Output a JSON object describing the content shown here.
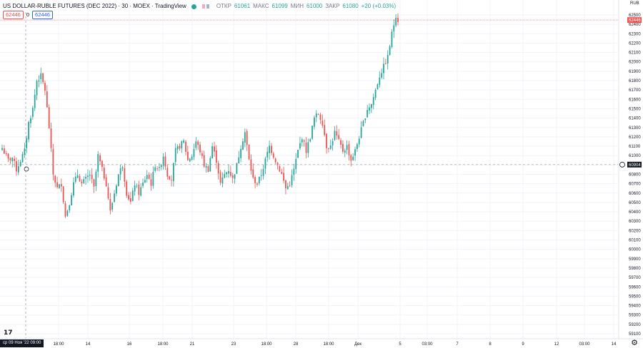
{
  "header": {
    "title": "US DOLLAR-RUBLE FUTURES (DEC 2022) · 30 · MOEX · TradingView",
    "open_label": "ОТКР",
    "open_value": "61061",
    "high_label": "МАКС",
    "high_value": "61099",
    "low_label": "МИН",
    "low_value": "61000",
    "close_label": "ЗАКР",
    "close_value": "61080",
    "change": "+20 (+0.03%)",
    "sell_price": "62446",
    "spread": "0",
    "buy_price": "62446"
  },
  "price_axis": {
    "currency": "RUB",
    "ticks": [
      62500,
      62400,
      62300,
      62200,
      62100,
      62000,
      61900,
      61800,
      61700,
      61600,
      61500,
      61400,
      61300,
      61200,
      61100,
      61000,
      60900,
      60800,
      60700,
      60600,
      60500,
      60400,
      60300,
      60200,
      60100,
      60000,
      59900,
      59800,
      59700,
      59600,
      59500,
      59400,
      59300,
      59200,
      59100
    ],
    "last_price_label": "62446",
    "crosshair_label": "60904"
  },
  "time_axis": {
    "crosshair_label": "ср 09 Ноя '22  09:00",
    "ticks": [
      "18:00",
      "14",
      "16",
      "18:00",
      "21",
      "23",
      "18:00",
      "28",
      "18:00",
      "Дек",
      "5",
      "03:00",
      "7",
      "8",
      "9",
      "12",
      "03:00",
      "14"
    ]
  },
  "colors": {
    "up": "#26a69a",
    "down": "#ef5350",
    "crosshair": "#9598a1",
    "last_price": "#ef5350"
  },
  "chart_data": {
    "type": "candlestick",
    "title": "US DOLLAR-RUBLE FUTURES (DEC 2022)",
    "interval": "30",
    "exchange": "MOEX",
    "ylim": [
      59050,
      62580
    ],
    "last_price": 62446,
    "crosshair_price": 60904,
    "crosshair_time": "ср 09 Ноя '22  09:00",
    "close_path": [
      {
        "i": 0,
        "close": 61080
      },
      {
        "i": 3,
        "close": 60950
      },
      {
        "i": 5,
        "close": 60980
      },
      {
        "i": 7,
        "close": 60850
      },
      {
        "i": 9,
        "close": 60950
      },
      {
        "i": 11,
        "close": 61050
      },
      {
        "i": 13,
        "close": 61350
      },
      {
        "i": 15,
        "close": 61500
      },
      {
        "i": 17,
        "close": 61800
      },
      {
        "i": 19,
        "close": 61850
      },
      {
        "i": 21,
        "close": 61700
      },
      {
        "i": 23,
        "close": 61300
      },
      {
        "i": 25,
        "close": 60800
      },
      {
        "i": 27,
        "close": 60650
      },
      {
        "i": 29,
        "close": 60700
      },
      {
        "i": 31,
        "close": 60350
      },
      {
        "i": 33,
        "close": 60500
      },
      {
        "i": 35,
        "close": 60700
      },
      {
        "i": 37,
        "close": 60800
      },
      {
        "i": 39,
        "close": 60700
      },
      {
        "i": 41,
        "close": 60750
      },
      {
        "i": 43,
        "close": 60800
      },
      {
        "i": 45,
        "close": 60650
      },
      {
        "i": 47,
        "close": 61000
      },
      {
        "i": 49,
        "close": 60850
      },
      {
        "i": 51,
        "close": 60700
      },
      {
        "i": 53,
        "close": 60400
      },
      {
        "i": 55,
        "close": 60600
      },
      {
        "i": 57,
        "close": 60800
      },
      {
        "i": 59,
        "close": 60900
      },
      {
        "i": 61,
        "close": 60600
      },
      {
        "i": 63,
        "close": 60500
      },
      {
        "i": 65,
        "close": 60700
      },
      {
        "i": 67,
        "close": 60600
      },
      {
        "i": 69,
        "close": 60700
      },
      {
        "i": 71,
        "close": 60800
      },
      {
        "i": 73,
        "close": 60700
      },
      {
        "i": 75,
        "close": 60900
      },
      {
        "i": 77,
        "close": 60850
      },
      {
        "i": 79,
        "close": 61000
      },
      {
        "i": 81,
        "close": 60800
      },
      {
        "i": 83,
        "close": 60750
      },
      {
        "i": 85,
        "close": 61050
      },
      {
        "i": 87,
        "close": 61100
      },
      {
        "i": 89,
        "close": 61150
      },
      {
        "i": 91,
        "close": 60950
      },
      {
        "i": 93,
        "close": 61000
      },
      {
        "i": 95,
        "close": 61150
      },
      {
        "i": 97,
        "close": 61050
      },
      {
        "i": 99,
        "close": 60900
      },
      {
        "i": 101,
        "close": 60850
      },
      {
        "i": 103,
        "close": 61100
      },
      {
        "i": 105,
        "close": 60950
      },
      {
        "i": 107,
        "close": 60700
      },
      {
        "i": 109,
        "close": 60800
      },
      {
        "i": 111,
        "close": 60850
      },
      {
        "i": 113,
        "close": 60750
      },
      {
        "i": 115,
        "close": 60900
      },
      {
        "i": 117,
        "close": 61100
      },
      {
        "i": 119,
        "close": 61250
      },
      {
        "i": 121,
        "close": 60950
      },
      {
        "i": 123,
        "close": 60750
      },
      {
        "i": 125,
        "close": 60700
      },
      {
        "i": 127,
        "close": 60800
      },
      {
        "i": 129,
        "close": 60950
      },
      {
        "i": 131,
        "close": 61100
      },
      {
        "i": 133,
        "close": 61000
      },
      {
        "i": 135,
        "close": 60900
      },
      {
        "i": 137,
        "close": 60800
      },
      {
        "i": 139,
        "close": 60650
      },
      {
        "i": 141,
        "close": 60700
      },
      {
        "i": 143,
        "close": 60850
      },
      {
        "i": 145,
        "close": 61050
      },
      {
        "i": 147,
        "close": 61200
      },
      {
        "i": 149,
        "close": 61050
      },
      {
        "i": 151,
        "close": 61200
      },
      {
        "i": 153,
        "close": 61400
      },
      {
        "i": 155,
        "close": 61450
      },
      {
        "i": 157,
        "close": 61350
      },
      {
        "i": 159,
        "close": 61100
      },
      {
        "i": 161,
        "close": 61100
      },
      {
        "i": 163,
        "close": 61250
      },
      {
        "i": 165,
        "close": 61150
      },
      {
        "i": 167,
        "close": 61050
      },
      {
        "i": 169,
        "close": 61100
      },
      {
        "i": 171,
        "close": 60950
      },
      {
        "i": 173,
        "close": 61050
      },
      {
        "i": 175,
        "close": 61200
      },
      {
        "i": 177,
        "close": 61350
      },
      {
        "i": 179,
        "close": 61500
      },
      {
        "i": 181,
        "close": 61550
      },
      {
        "i": 183,
        "close": 61700
      },
      {
        "i": 185,
        "close": 61850
      },
      {
        "i": 187,
        "close": 61950
      },
      {
        "i": 189,
        "close": 62050
      },
      {
        "i": 191,
        "close": 62300
      },
      {
        "i": 193,
        "close": 62500
      },
      {
        "i": 194,
        "close": 62446
      }
    ]
  }
}
